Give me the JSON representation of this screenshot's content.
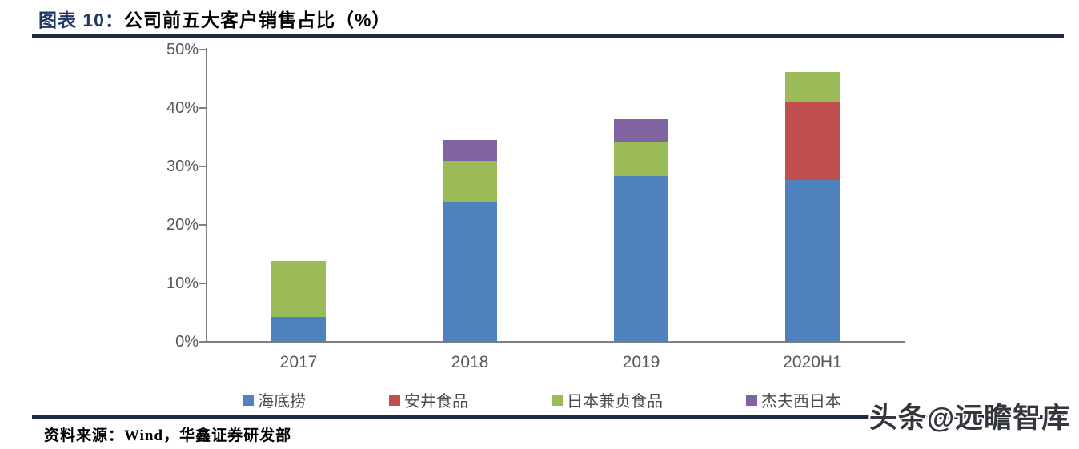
{
  "figure": {
    "label_prefix": "图表 10：",
    "title": "公司前五大客户销售占比（%）"
  },
  "chart_data": {
    "type": "bar",
    "stacked": true,
    "title": "公司前五大客户销售占比（%）",
    "categories": [
      "2017",
      "2018",
      "2019",
      "2020H1"
    ],
    "series": [
      {
        "name": "海底捞",
        "color": "#4f81bd",
        "values": [
          4.3,
          24.0,
          28.3,
          27.7
        ]
      },
      {
        "name": "安井食品",
        "color": "#c0504d",
        "values": [
          0,
          0,
          0,
          13.4
        ]
      },
      {
        "name": "日本兼贞食品",
        "color": "#9bbb59",
        "values": [
          9.5,
          7.0,
          5.8,
          5.0
        ]
      },
      {
        "name": "杰夫西日本",
        "color": "#8064a2",
        "values": [
          0,
          3.5,
          4.0,
          0
        ]
      }
    ],
    "totals": [
      13.8,
      34.5,
      38.1,
      46.1
    ],
    "xlabel": "",
    "ylabel": "",
    "ylim": [
      0,
      50
    ],
    "y_ticks": [
      "50%",
      "40%",
      "30%",
      "20%",
      "10%",
      "0%"
    ],
    "grid": false,
    "legend_position": "bottom"
  },
  "footer": {
    "source": "资料来源：Wind，华鑫证券研发部"
  },
  "watermark": {
    "text": "头条@远瞻智库"
  },
  "colors": {
    "accent_navy": "#1f2a44",
    "title_blue": "#1f3864",
    "axis_gray": "#808080",
    "tick_text": "#595959"
  }
}
